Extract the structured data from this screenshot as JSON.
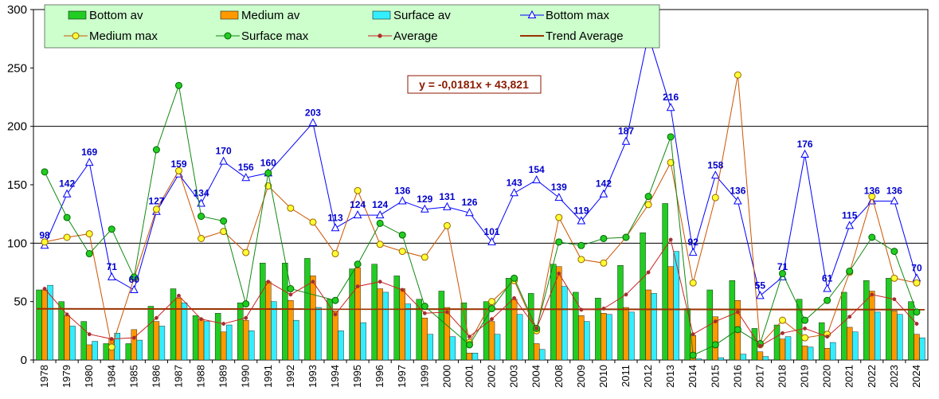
{
  "chart_data": {
    "type": "bar+line",
    "ylim": [
      0,
      300
    ],
    "yticks": [
      0,
      50,
      100,
      150,
      200,
      250,
      300
    ],
    "gridlines": [
      100,
      200
    ],
    "categories": [
      "1978",
      "1979",
      "1980",
      "1984",
      "1985",
      "1986",
      "1987",
      "1988",
      "1989",
      "1990",
      "1991",
      "1992",
      "1993",
      "1994",
      "1995",
      "1996",
      "1997",
      "1999",
      "2000",
      "2001",
      "2002",
      "2003",
      "2004",
      "2008",
      "2009",
      "2010",
      "2011",
      "2012",
      "2013",
      "2014",
      "2015",
      "2016",
      "2017",
      "2018",
      "2019",
      "2020",
      "2021",
      "2022",
      "2023",
      "2024"
    ],
    "bar_series": [
      {
        "name": "Bottom av",
        "color": "#22cc22",
        "values": [
          60,
          50,
          33,
          14,
          14,
          46,
          61,
          38,
          40,
          49,
          83,
          83,
          87,
          52,
          78,
          82,
          72,
          52,
          59,
          49,
          50,
          70,
          57,
          82,
          58,
          53,
          81,
          109,
          134,
          44,
          60,
          68,
          27,
          30,
          52,
          32,
          58,
          68,
          70,
          50
        ]
      },
      {
        "name": "Medium av",
        "color": "#ff9900",
        "values": [
          60,
          38,
          13,
          18,
          26,
          33,
          53,
          35,
          24,
          34,
          67,
          51,
          72,
          42,
          79,
          61,
          61,
          36,
          45,
          6,
          33,
          52,
          14,
          80,
          38,
          40,
          45,
          60,
          80,
          21,
          37,
          51,
          7,
          18,
          12,
          10,
          28,
          59,
          42,
          22
        ]
      },
      {
        "name": "Surface av",
        "color": "#33eeff",
        "values": [
          64,
          29,
          16,
          23,
          17,
          29,
          49,
          33,
          30,
          25,
          50,
          34,
          45,
          25,
          32,
          58,
          48,
          22,
          20,
          6,
          22,
          39,
          9,
          63,
          33,
          39,
          41,
          57,
          93,
          1,
          2,
          5,
          3,
          20,
          11,
          15,
          24,
          41,
          39,
          19
        ]
      }
    ],
    "line_series": [
      {
        "name": "Bottom max",
        "color": "#0000ff",
        "marker": "triangle",
        "values": [
          98,
          142,
          169,
          71,
          60,
          127,
          159,
          134,
          170,
          156,
          160,
          null,
          203,
          113,
          124,
          124,
          136,
          129,
          131,
          126,
          101,
          143,
          154,
          139,
          119,
          142,
          187,
          278,
          216,
          92,
          158,
          136,
          55,
          71,
          176,
          61,
          115,
          136,
          136,
          70
        ]
      },
      {
        "name": "Medium max",
        "color": "#cc5500",
        "marker": "circle-yellow",
        "values": [
          101,
          105,
          108,
          11,
          70,
          129,
          162,
          104,
          110,
          92,
          149,
          130,
          118,
          91,
          145,
          99,
          93,
          88,
          115,
          15,
          50,
          68,
          25,
          122,
          86,
          83,
          105,
          133,
          169,
          66,
          139,
          244,
          13,
          34,
          19,
          22,
          75,
          140,
          70,
          66
        ]
      },
      {
        "name": "Surface max",
        "color": "#118811",
        "marker": "circle-green",
        "values": [
          161,
          122,
          91,
          112,
          71,
          180,
          235,
          123,
          119,
          48,
          160,
          61,
          null,
          51,
          82,
          117,
          107,
          46,
          null,
          13,
          44,
          70,
          27,
          101,
          98,
          104,
          105,
          140,
          191,
          4,
          13,
          26,
          14,
          74,
          34,
          51,
          76,
          105,
          93,
          41
        ]
      },
      {
        "name": "Average",
        "color": "#cc2222",
        "marker": "dot-small",
        "values": [
          61,
          39,
          22,
          18,
          19,
          36,
          55,
          35,
          31,
          36,
          67,
          56,
          67,
          39,
          63,
          67,
          60,
          40,
          41,
          20,
          35,
          53,
          27,
          74,
          43,
          44,
          56,
          75,
          103,
          22,
          33,
          41,
          12,
          23,
          27,
          20,
          37,
          56,
          52,
          31
        ]
      }
    ],
    "trend": {
      "name": "Trend Average",
      "color": "#993300",
      "equation": "y = -0,0181x + 43,821",
      "slope": -0.0181,
      "intercept": 43.821
    },
    "data_labels": [
      "98",
      "142",
      "169",
      "71",
      "60",
      "127",
      "159",
      "134",
      "170",
      "156",
      "160",
      "",
      "203",
      "113",
      "124",
      "124",
      "136",
      "129",
      "131",
      "126",
      "101",
      "143",
      "154",
      "139",
      "119",
      "142",
      "187",
      "",
      "216",
      "92",
      "158",
      "136",
      "55",
      "71",
      "176",
      "61",
      "115",
      "136",
      "136",
      "70"
    ],
    "legend": [
      "Bottom av",
      "Medium av",
      "Surface av",
      "Bottom max",
      "Medium max",
      "Surface max",
      "Average",
      "Trend Average"
    ],
    "legend_position": "top-left"
  }
}
